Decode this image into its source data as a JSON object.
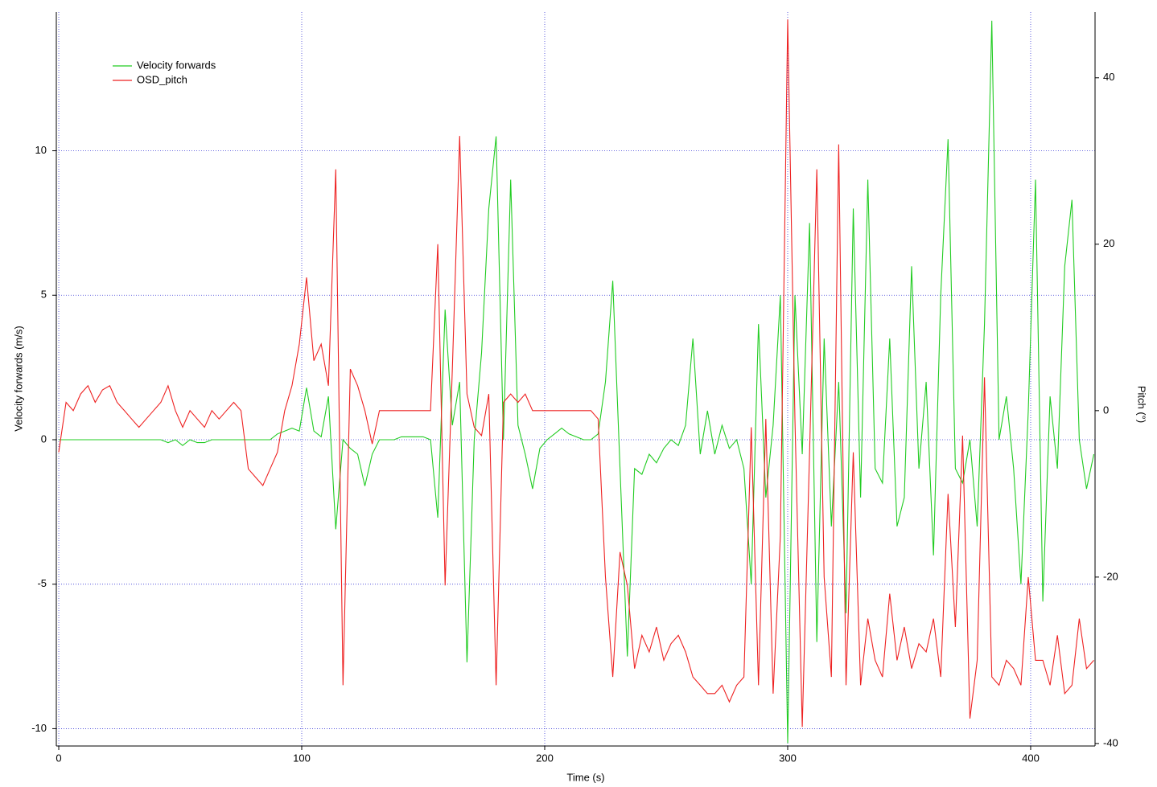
{
  "chart_data": {
    "type": "line",
    "x_label": "Time (s)",
    "y_label": "Velocity forwards (m/s)",
    "y2_label": "Pitch (°)",
    "xlim": [
      -1,
      426.5
    ],
    "ylim": [
      -10.6,
      14.8
    ],
    "y2lim": [
      -40.3,
      47.9
    ],
    "xticks": [
      0,
      100,
      200,
      300,
      400
    ],
    "yticks": [
      -10,
      -5,
      0,
      5,
      10
    ],
    "y2ticks": [
      -40,
      -20,
      0,
      20,
      40
    ],
    "grid": true,
    "legend": "upper left",
    "x": [
      0,
      3,
      6,
      9,
      12,
      15,
      18,
      21,
      24,
      27,
      30,
      33,
      36,
      39,
      42,
      45,
      48,
      51,
      54,
      57,
      60,
      63,
      66,
      69,
      72,
      75,
      78,
      81,
      84,
      87,
      90,
      93,
      96,
      99,
      102,
      105,
      108,
      111,
      114,
      117,
      120,
      123,
      126,
      129,
      132,
      135,
      138,
      141,
      144,
      147,
      150,
      153,
      156,
      159,
      162,
      165,
      168,
      171,
      174,
      177,
      180,
      183,
      186,
      189,
      192,
      195,
      198,
      201,
      204,
      207,
      210,
      213,
      216,
      219,
      222,
      225,
      228,
      231,
      234,
      237,
      240,
      243,
      246,
      249,
      252,
      255,
      258,
      261,
      264,
      267,
      270,
      273,
      276,
      279,
      282,
      285,
      288,
      291,
      294,
      297,
      300,
      303,
      306,
      309,
      312,
      315,
      318,
      321,
      324,
      327,
      330,
      333,
      336,
      339,
      342,
      345,
      348,
      351,
      354,
      357,
      360,
      363,
      366,
      369,
      372,
      375,
      378,
      381,
      384,
      387,
      390,
      393,
      396,
      399,
      402,
      405,
      408,
      411,
      414,
      417,
      420,
      423,
      426
    ],
    "series": [
      {
        "name": "Velocity forwards",
        "color": "#22cc22",
        "values": [
          0,
          0,
          0,
          0,
          0,
          0,
          0,
          0,
          0,
          0,
          0,
          0,
          0,
          0,
          0,
          -0.1,
          0,
          -0.2,
          0,
          -0.1,
          -0.1,
          0,
          0,
          0,
          0,
          0,
          0,
          0,
          0,
          0,
          0.2,
          0.3,
          0.4,
          0.3,
          1.8,
          0.3,
          0.1,
          1.5,
          -3.1,
          0,
          -0.3,
          -0.5,
          -1.6,
          -0.5,
          0,
          0,
          0,
          0.1,
          0.1,
          0.1,
          0.1,
          0,
          -2.7,
          4.5,
          0.5,
          2,
          -7.7,
          0,
          3,
          8,
          10.5,
          0,
          9,
          0.5,
          -0.5,
          -1.7,
          -0.3,
          0,
          0.2,
          0.4,
          0.2,
          0.1,
          0,
          0,
          0.2,
          2,
          5.5,
          -1,
          -7.5,
          -1,
          -1.2,
          -0.5,
          -0.8,
          -0.3,
          0,
          -0.2,
          0.5,
          3.5,
          -0.5,
          1,
          -0.5,
          0.5,
          -0.3,
          0,
          -1,
          -5,
          4,
          -2,
          0.5,
          5,
          -10.5,
          5,
          -0.5,
          7.5,
          -7,
          3.5,
          -3,
          2,
          -6,
          8,
          -2,
          9,
          -1,
          -1.5,
          3.5,
          -3,
          -2,
          6,
          -1,
          2,
          -4,
          5,
          10.4,
          -1,
          -1.5,
          0,
          -3,
          4,
          14.5,
          0,
          1.5,
          -1,
          -5,
          1,
          9,
          -5.6,
          1.5,
          -1,
          6,
          8.3,
          0,
          -1.7,
          -0.5
        ]
      },
      {
        "name": "OSD_pitch",
        "color": "#ee2222",
        "axis": "y2",
        "values": [
          -5,
          1,
          0,
          2,
          3,
          1,
          2.5,
          3,
          1,
          0,
          -1,
          -2,
          -1,
          0,
          1,
          3,
          0,
          -2,
          0,
          -1,
          -2,
          0,
          -1,
          0,
          1,
          0,
          -7,
          -8,
          -9,
          -7,
          -5,
          0,
          3,
          8,
          16,
          6,
          8,
          3,
          29,
          -33,
          5,
          3,
          0,
          -4,
          0,
          0,
          0,
          0,
          0,
          0,
          0,
          0,
          20,
          -21,
          5,
          33,
          2,
          -2,
          -3,
          2,
          -33,
          1,
          2,
          1,
          2,
          0,
          0,
          0,
          0,
          0,
          0,
          0,
          0,
          0,
          -1,
          -20,
          -32,
          -17,
          -21,
          -31,
          -27,
          -29,
          -26,
          -30,
          -28,
          -27,
          -29,
          -32,
          -33,
          -34,
          -34,
          -33,
          -35,
          -33,
          -32,
          -2,
          -33,
          -1,
          -34,
          -15,
          47,
          -1,
          -38,
          -5,
          29,
          -20,
          -32,
          32,
          -33,
          -5,
          -33,
          -25,
          -30,
          -32,
          -22,
          -30,
          -26,
          -31,
          -28,
          -29,
          -25,
          -32,
          -10,
          -26,
          -3,
          -37,
          -30,
          4,
          -32,
          -33,
          -30,
          -31,
          -33,
          -20,
          -30,
          -30,
          -33,
          -27,
          -34,
          -33,
          -25,
          -31,
          -30
        ]
      }
    ]
  }
}
